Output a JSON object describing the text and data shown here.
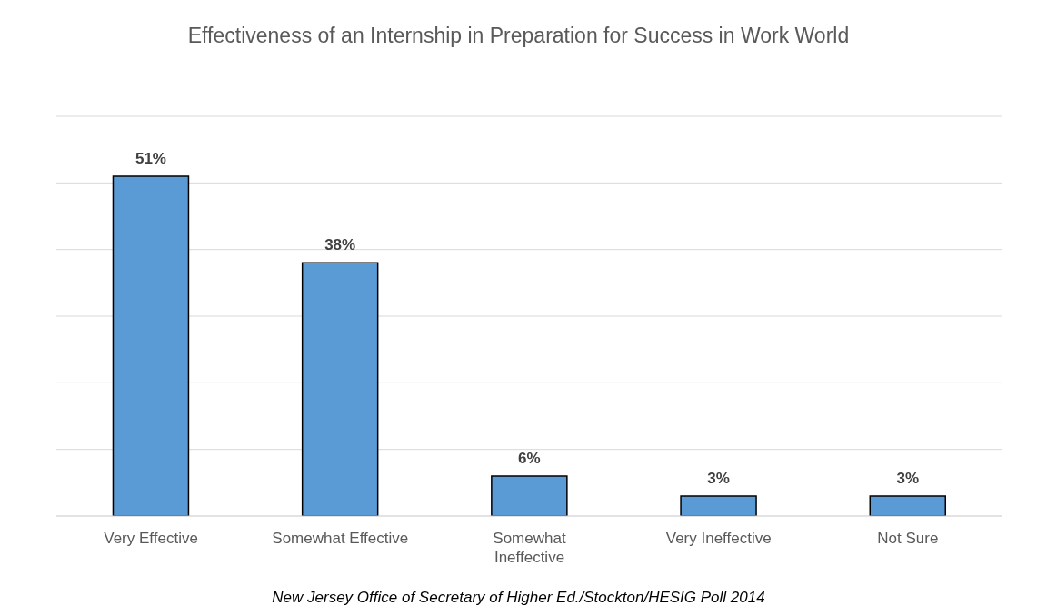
{
  "chart_data": {
    "type": "bar",
    "title": "Effectiveness of an Internship in Preparation for Success in Work World",
    "categories": [
      "Very Effective",
      "Somewhat Effective",
      "Somewhat Ineffective",
      "Very Ineffective",
      "Not Sure"
    ],
    "values": [
      51,
      38,
      6,
      3,
      3
    ],
    "color": "#5b9bd5",
    "ylim": [
      0,
      60
    ],
    "yticks": [
      {
        "value": 0,
        "label": null
      },
      {
        "value": 10,
        "label": null
      },
      {
        "value": 20,
        "label": null
      },
      {
        "value": 30,
        "label": null
      },
      {
        "value": 40,
        "label": null
      },
      {
        "value": 50,
        "label": null
      },
      {
        "value": 60,
        "label": null
      }
    ],
    "value_labels": [
      "51%",
      "38%",
      "6%",
      "3%",
      "3%"
    ],
    "tick_labels": "x",
    "grid": "y",
    "annotations": [
      "New Jersey Office of Secretary of Higher Ed./Stockton/HESIG Poll 2014"
    ]
  }
}
